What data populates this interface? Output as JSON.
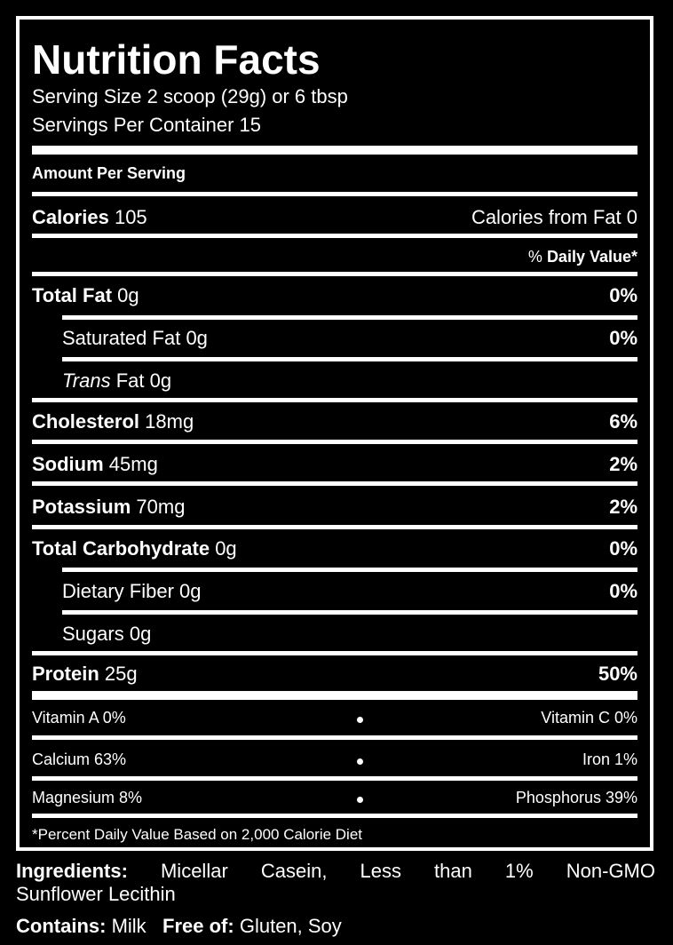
{
  "label": {
    "title": "Nutrition Facts",
    "serving_size": "Serving Size 2 scoop (29g) or 6 tbsp",
    "servings_per_container": "Servings Per Container 15",
    "amount_per_serving": "Amount Per Serving",
    "calories_label": "Calories",
    "calories_value": "105",
    "calories_from_fat": "Calories from Fat 0",
    "dv_prefix": "%",
    "dv_label": "Daily Value*",
    "nutrients": [
      {
        "name": "Total Fat",
        "amount": "0g",
        "dv": "0%"
      },
      {
        "name": "Saturated Fat",
        "amount": "0g",
        "dv": "0%"
      },
      {
        "name_italic": "Trans",
        "name_rest": "Fat",
        "amount": "0g"
      },
      {
        "name": "Cholesterol",
        "amount": "18mg",
        "dv": "6%"
      },
      {
        "name": "Sodium",
        "amount": "45mg",
        "dv": "2%"
      },
      {
        "name": "Potassium",
        "amount": "70mg",
        "dv": "2%"
      },
      {
        "name": "Total Carbohydrate",
        "amount": "0g",
        "dv": "0%"
      },
      {
        "name": "Dietary Fiber",
        "amount": "0g",
        "dv": "0%"
      },
      {
        "name": "Sugars",
        "amount": "0g"
      },
      {
        "name": "Protein",
        "amount": "25g",
        "dv": "50%"
      }
    ],
    "vitamins": [
      {
        "left": "Vitamin A 0%",
        "right": "Vitamin C 0%"
      },
      {
        "left": "Calcium 63%",
        "right": "Iron 1%"
      },
      {
        "left": "Magnesium 8%",
        "right": "Phosphorus 39%"
      }
    ],
    "footnote": "*Percent Daily Value Based on 2,000 Calorie Diet"
  },
  "ingredients": {
    "label": "Ingredients:",
    "text_line1": "Micellar Casein, Less than 1% Non-GMO",
    "text_line2": "Sunflower Lecithin"
  },
  "contains": {
    "label": "Contains:",
    "value": "Milk",
    "free_label": "Free of:",
    "free_value": "Gluten, Soy"
  }
}
